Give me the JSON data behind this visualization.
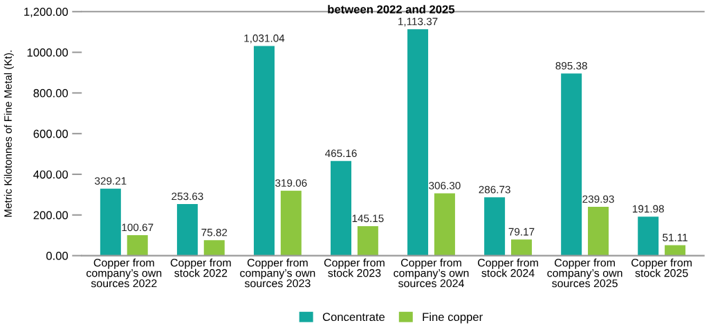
{
  "chart_data": {
    "type": "bar",
    "title": "between 2022 and 2025",
    "ylabel": "Metric Kilotonnes of Fine Metal (Kt).",
    "categories": [
      "Copper from company’s own sources 2022",
      "Copper from stock 2022",
      "Copper from company’s own sources 2023",
      "Copper from stock 2023",
      "Copper from company’s own sources 2024",
      "Copper from stock 2024",
      "Copper from company’s own sources 2025",
      "Copper from stock 2025"
    ],
    "series": [
      {
        "name": "Concentrate",
        "color": "#13a89e",
        "values": [
          329.21,
          253.63,
          1031.04,
          465.16,
          1113.37,
          286.73,
          895.38,
          191.98
        ],
        "value_labels": [
          "329.21",
          "253.63",
          "1,031.04",
          "465.16",
          "1,113.37",
          "286.73",
          "895.38",
          "191.98"
        ]
      },
      {
        "name": "Fine copper",
        "color": "#8dc63f",
        "values": [
          100.67,
          75.82,
          319.06,
          145.15,
          306.3,
          79.17,
          239.93,
          51.11
        ],
        "value_labels": [
          "100.67",
          "75.82",
          "319.06",
          "145.15",
          "306.30",
          "79.17",
          "239.93",
          "51.11"
        ]
      }
    ],
    "ylim": [
      0,
      1200
    ],
    "yticks": [
      {
        "value": 0,
        "label": "0.00"
      },
      {
        "value": 200,
        "label": "200.00"
      },
      {
        "value": 400,
        "label": "400.00"
      },
      {
        "value": 600,
        "label": "600.00"
      },
      {
        "value": 800,
        "label": "800.00"
      },
      {
        "value": 1000,
        "label": "1000.00"
      },
      {
        "value": 1200,
        "label": "1,200.00"
      }
    ],
    "legend": "bottom",
    "grid": false
  }
}
